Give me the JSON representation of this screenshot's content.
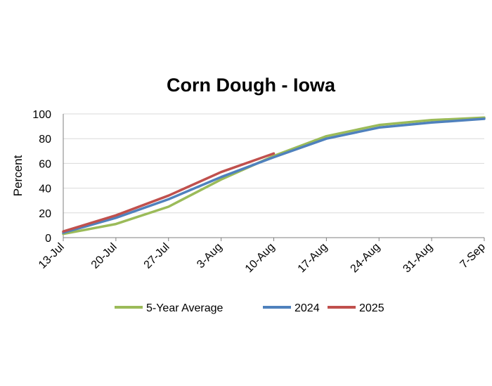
{
  "chart_data": {
    "type": "line",
    "title": "Corn Dough - Iowa",
    "xlabel": "",
    "ylabel": "Percent",
    "categories": [
      "13-Jul",
      "20-Jul",
      "27-Jul",
      "3-Aug",
      "10-Aug",
      "17-Aug",
      "24-Aug",
      "31-Aug",
      "7-Sep"
    ],
    "ylim": [
      0,
      100
    ],
    "yticks": [
      0,
      20,
      40,
      60,
      80,
      100
    ],
    "grid": true,
    "legend_position": "bottom",
    "series": [
      {
        "name": "5-Year Average",
        "color": "#9bbb59",
        "values": [
          3,
          11,
          25,
          47,
          66,
          82,
          91,
          95,
          97
        ]
      },
      {
        "name": "2024",
        "color": "#4f81bd",
        "values": [
          4,
          16,
          31,
          49,
          65,
          80,
          89,
          93,
          96
        ]
      },
      {
        "name": "2025",
        "color": "#c0504d",
        "values": [
          5,
          18,
          34,
          53,
          68,
          null,
          null,
          null,
          null
        ]
      }
    ]
  }
}
